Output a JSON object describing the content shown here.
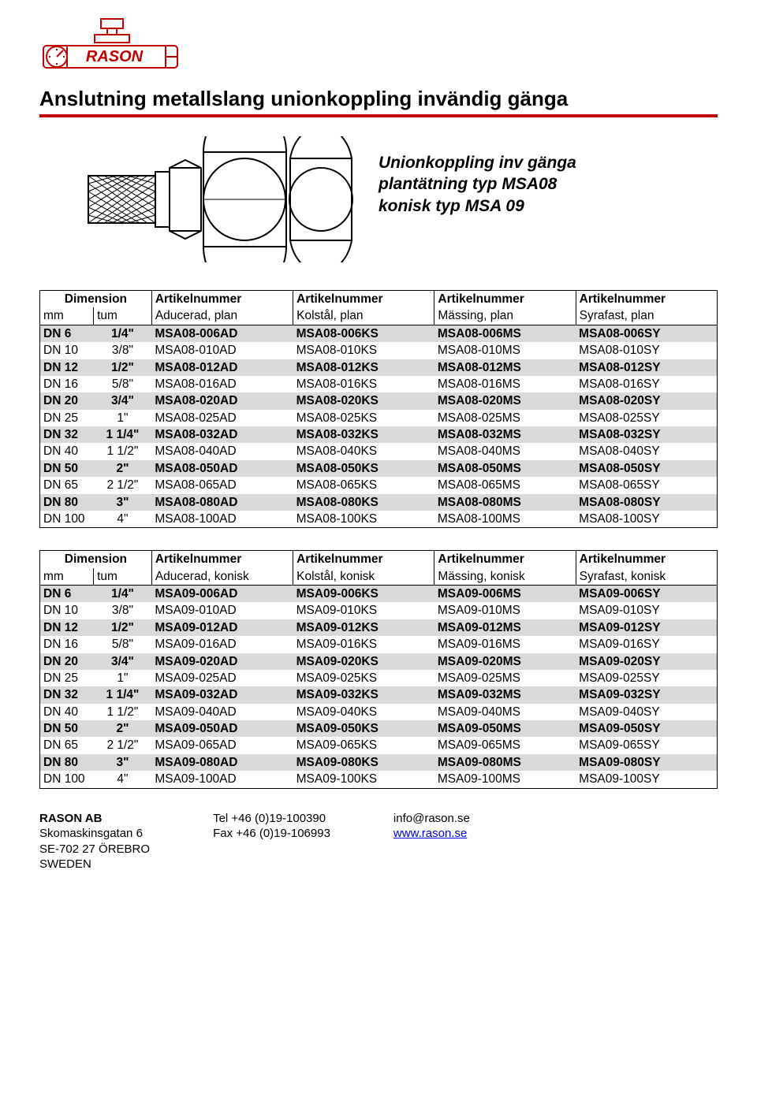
{
  "title": "Anslutning metallslang unionkoppling invändig gänga",
  "hero": {
    "line1": "Unionkoppling inv gänga",
    "line2": "plantätning typ MSA08",
    "line3": "konisk typ MSA 09"
  },
  "colors": {
    "rule": "#c00000",
    "shade": "#d9d9d9",
    "link": "#0000ee",
    "border": "#000000"
  },
  "table_header": {
    "dimension": "Dimension",
    "artikelnummer": "Artikelnummer",
    "mm": "mm",
    "tum": "tum"
  },
  "table1": {
    "sub": [
      "Aducerad, plan",
      "Kolstål, plan",
      "Mässing, plan",
      "Syrafast, plan"
    ],
    "rows": [
      {
        "mm": "DN 6",
        "tum": "1/4\"",
        "a": "MSA08-006AD",
        "b": "MSA08-006KS",
        "c": "MSA08-006MS",
        "d": "MSA08-006SY",
        "bold": true,
        "shade": true
      },
      {
        "mm": "DN 10",
        "tum": "3/8\"",
        "a": "MSA08-010AD",
        "b": "MSA08-010KS",
        "c": "MSA08-010MS",
        "d": "MSA08-010SY",
        "bold": false,
        "shade": false
      },
      {
        "mm": "DN 12",
        "tum": "1/2\"",
        "a": "MSA08-012AD",
        "b": "MSA08-012KS",
        "c": "MSA08-012MS",
        "d": "MSA08-012SY",
        "bold": true,
        "shade": true
      },
      {
        "mm": "DN 16",
        "tum": "5/8\"",
        "a": "MSA08-016AD",
        "b": "MSA08-016KS",
        "c": "MSA08-016MS",
        "d": "MSA08-016SY",
        "bold": false,
        "shade": false
      },
      {
        "mm": "DN 20",
        "tum": "3/4\"",
        "a": "MSA08-020AD",
        "b": "MSA08-020KS",
        "c": "MSA08-020MS",
        "d": "MSA08-020SY",
        "bold": true,
        "shade": true
      },
      {
        "mm": "DN 25",
        "tum": "1\"",
        "a": "MSA08-025AD",
        "b": "MSA08-025KS",
        "c": "MSA08-025MS",
        "d": "MSA08-025SY",
        "bold": false,
        "shade": false
      },
      {
        "mm": "DN 32",
        "tum": "1 1/4\"",
        "a": "MSA08-032AD",
        "b": "MSA08-032KS",
        "c": "MSA08-032MS",
        "d": "MSA08-032SY",
        "bold": true,
        "shade": true
      },
      {
        "mm": "DN 40",
        "tum": "1 1/2\"",
        "a": "MSA08-040AD",
        "b": "MSA08-040KS",
        "c": "MSA08-040MS",
        "d": "MSA08-040SY",
        "bold": false,
        "shade": false
      },
      {
        "mm": "DN 50",
        "tum": "2\"",
        "a": "MSA08-050AD",
        "b": "MSA08-050KS",
        "c": "MSA08-050MS",
        "d": "MSA08-050SY",
        "bold": true,
        "shade": true
      },
      {
        "mm": "DN 65",
        "tum": "2 1/2\"",
        "a": "MSA08-065AD",
        "b": "MSA08-065KS",
        "c": "MSA08-065MS",
        "d": "MSA08-065SY",
        "bold": false,
        "shade": false
      },
      {
        "mm": "DN 80",
        "tum": "3\"",
        "a": "MSA08-080AD",
        "b": "MSA08-080KS",
        "c": "MSA08-080MS",
        "d": "MSA08-080SY",
        "bold": true,
        "shade": true
      },
      {
        "mm": "DN 100",
        "tum": "4\"",
        "a": "MSA08-100AD",
        "b": "MSA08-100KS",
        "c": "MSA08-100MS",
        "d": "MSA08-100SY",
        "bold": false,
        "shade": false
      }
    ]
  },
  "table2": {
    "sub": [
      "Aducerad, konisk",
      "Kolstål, konisk",
      "Mässing, konisk",
      "Syrafast, konisk"
    ],
    "rows": [
      {
        "mm": "DN 6",
        "tum": "1/4\"",
        "a": "MSA09-006AD",
        "b": "MSA09-006KS",
        "c": "MSA09-006MS",
        "d": "MSA09-006SY",
        "bold": true,
        "shade": true
      },
      {
        "mm": "DN 10",
        "tum": "3/8\"",
        "a": "MSA09-010AD",
        "b": "MSA09-010KS",
        "c": "MSA09-010MS",
        "d": "MSA09-010SY",
        "bold": false,
        "shade": false
      },
      {
        "mm": "DN 12",
        "tum": "1/2\"",
        "a": "MSA09-012AD",
        "b": "MSA09-012KS",
        "c": "MSA09-012MS",
        "d": "MSA09-012SY",
        "bold": true,
        "shade": true
      },
      {
        "mm": "DN 16",
        "tum": "5/8\"",
        "a": "MSA09-016AD",
        "b": "MSA09-016KS",
        "c": "MSA09-016MS",
        "d": "MSA09-016SY",
        "bold": false,
        "shade": false
      },
      {
        "mm": "DN 20",
        "tum": "3/4\"",
        "a": "MSA09-020AD",
        "b": "MSA09-020KS",
        "c": "MSA09-020MS",
        "d": "MSA09-020SY",
        "bold": true,
        "shade": true
      },
      {
        "mm": "DN 25",
        "tum": "1\"",
        "a": "MSA09-025AD",
        "b": "MSA09-025KS",
        "c": "MSA09-025MS",
        "d": "MSA09-025SY",
        "bold": false,
        "shade": false
      },
      {
        "mm": "DN 32",
        "tum": "1 1/4\"",
        "a": "MSA09-032AD",
        "b": "MSA09-032KS",
        "c": "MSA09-032MS",
        "d": "MSA09-032SY",
        "bold": true,
        "shade": true
      },
      {
        "mm": "DN 40",
        "tum": "1 1/2\"",
        "a": "MSA09-040AD",
        "b": "MSA09-040KS",
        "c": "MSA09-040MS",
        "d": "MSA09-040SY",
        "bold": false,
        "shade": false
      },
      {
        "mm": "DN 50",
        "tum": "2\"",
        "a": "MSA09-050AD",
        "b": "MSA09-050KS",
        "c": "MSA09-050MS",
        "d": "MSA09-050SY",
        "bold": true,
        "shade": true
      },
      {
        "mm": "DN 65",
        "tum": "2 1/2\"",
        "a": "MSA09-065AD",
        "b": "MSA09-065KS",
        "c": "MSA09-065MS",
        "d": "MSA09-065SY",
        "bold": false,
        "shade": false
      },
      {
        "mm": "DN 80",
        "tum": "3\"",
        "a": "MSA09-080AD",
        "b": "MSA09-080KS",
        "c": "MSA09-080MS",
        "d": "MSA09-080SY",
        "bold": true,
        "shade": true
      },
      {
        "mm": "DN 100",
        "tum": "4\"",
        "a": "MSA09-100AD",
        "b": "MSA09-100KS",
        "c": "MSA09-100MS",
        "d": "MSA09-100SY",
        "bold": false,
        "shade": false
      }
    ]
  },
  "footer": {
    "company": "RASON AB",
    "addr1": "Skomaskinsgatan 6",
    "addr2": "SE-702 27  ÖREBRO",
    "addr3": "SWEDEN",
    "tel": "Tel +46 (0)19-100390",
    "fax": "Fax +46 (0)19-106993",
    "email": "info@rason.se",
    "web": "www.rason.se"
  }
}
